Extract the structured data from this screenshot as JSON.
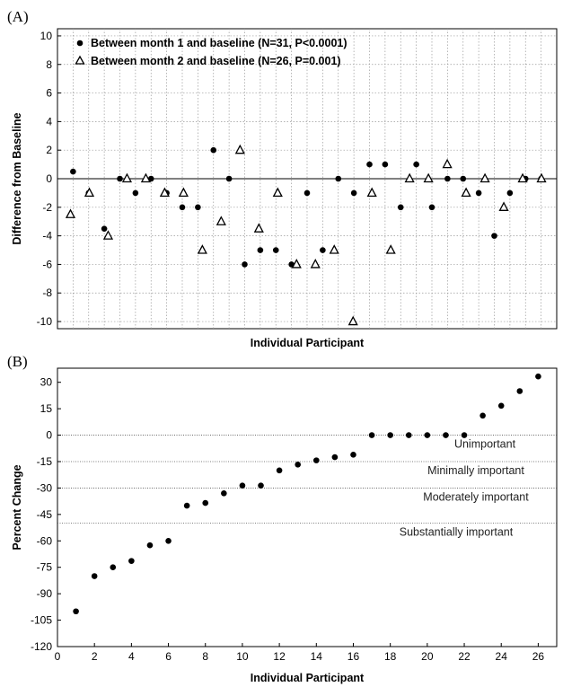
{
  "panel_a_label": "(A)",
  "panel_b_label": "(B)",
  "chart_data": [
    {
      "type": "scatter",
      "xlabel": "Individual Participant",
      "ylabel": "Difference from Baseline",
      "ylim": [
        -10.5,
        10.5
      ],
      "yticks": [
        10,
        8,
        6,
        4,
        2,
        0,
        -2,
        -4,
        -6,
        -8,
        -10
      ],
      "grid": true,
      "legend": "top-left",
      "n_slots": 31,
      "series": [
        {
          "name": "Between month 1 and baseline (N=31, P<0.0001)",
          "marker": "filled-circle",
          "x": [
            1,
            2,
            3,
            4,
            5,
            6,
            7,
            8,
            9,
            10,
            11,
            12,
            13,
            14,
            15,
            16,
            17,
            18,
            19,
            20,
            21,
            22,
            23,
            24,
            25,
            26,
            27,
            28,
            29,
            30,
            31
          ],
          "y": [
            0.5,
            -1,
            -3.5,
            0,
            -1,
            0,
            -1,
            -2,
            -2,
            2,
            0,
            -6,
            -5,
            -5,
            -6,
            -1,
            -5,
            0,
            -1,
            1,
            1,
            -2,
            1,
            -2,
            0,
            0,
            -1,
            -4,
            -1,
            0,
            0
          ]
        },
        {
          "name": "Between month 2 and baseline (N=26, P=0.001)",
          "marker": "open-triangle",
          "x": [
            1,
            2,
            3,
            4,
            5,
            6,
            7,
            8,
            9,
            10,
            11,
            12,
            13,
            14,
            15,
            16,
            17,
            18,
            19,
            20,
            21,
            22,
            23,
            24,
            25,
            26
          ],
          "y": [
            -2.5,
            -1,
            -4,
            0,
            0,
            -1,
            -1,
            -5,
            -3,
            2,
            -3.5,
            -1,
            -6,
            -6,
            -5,
            -10,
            -1,
            -5,
            0,
            0,
            1,
            -1,
            0,
            -2,
            0,
            0
          ]
        }
      ]
    },
    {
      "type": "scatter",
      "xlabel": "Individual Participant",
      "ylabel": "Percent Change",
      "xlim": [
        0,
        27
      ],
      "xticks": [
        0,
        2,
        4,
        6,
        8,
        10,
        12,
        14,
        16,
        18,
        20,
        22,
        24,
        26
      ],
      "ylim": [
        -120,
        38
      ],
      "yticks": [
        30,
        15,
        0,
        -15,
        -30,
        -45,
        -60,
        -75,
        -90,
        -105,
        -120
      ],
      "grid": false,
      "series": [
        {
          "marker": "filled-circle",
          "x": [
            1,
            2,
            3,
            4,
            5,
            6,
            7,
            8,
            9,
            10,
            11,
            12,
            13,
            14,
            15,
            16,
            17,
            18,
            19,
            20,
            21,
            22,
            23,
            24,
            25,
            26
          ],
          "y": [
            -100,
            -80,
            -75,
            -71.4,
            -62.5,
            -60,
            -40,
            -38.5,
            -33,
            -28.6,
            -28.6,
            -20,
            -16.7,
            -14.3,
            -12.5,
            -11.1,
            0,
            0,
            0,
            0,
            0,
            0,
            11.1,
            16.7,
            25,
            33.3
          ]
        }
      ],
      "thresholds": [
        {
          "y": 0,
          "label": "Unimportant"
        },
        {
          "y": -15,
          "label": "Minimally important"
        },
        {
          "y": -30,
          "label": "Moderately important"
        },
        {
          "y": -50,
          "label": "Substantially important"
        }
      ]
    }
  ]
}
